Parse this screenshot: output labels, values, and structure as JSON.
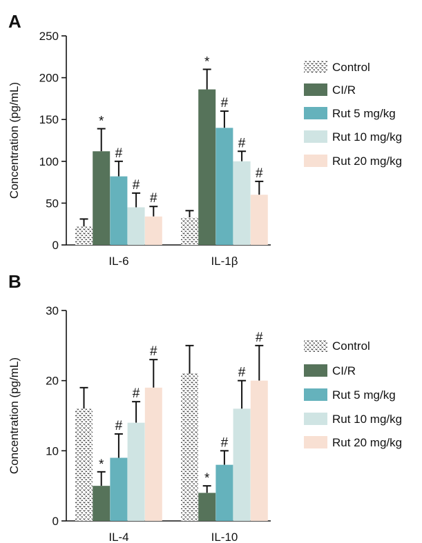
{
  "chart_data": [
    {
      "type": "bar",
      "panel_label": "A",
      "ylabel": "Concentration (pg/mL)",
      "xlabel": "",
      "ylim": [
        0,
        250
      ],
      "yticks": [
        0,
        50,
        100,
        150,
        200,
        250
      ],
      "categories": [
        "IL-6",
        "IL-1β"
      ],
      "grid": false,
      "legend_position": "right",
      "series": [
        {
          "name": "Control",
          "values": [
            22,
            33
          ],
          "errors": [
            9,
            8
          ],
          "markers": [
            "",
            ""
          ]
        },
        {
          "name": "CI/R",
          "values": [
            112,
            186
          ],
          "errors": [
            27,
            24
          ],
          "markers": [
            "*",
            "*"
          ]
        },
        {
          "name": "Rut 5 mg/kg",
          "values": [
            82,
            140
          ],
          "errors": [
            18,
            20
          ],
          "markers": [
            "#",
            "#"
          ]
        },
        {
          "name": "Rut 10 mg/kg",
          "values": [
            45,
            100
          ],
          "errors": [
            17,
            12
          ],
          "markers": [
            "#",
            "#"
          ]
        },
        {
          "name": "Rut 20 mg/kg",
          "values": [
            34,
            60
          ],
          "errors": [
            12,
            16
          ],
          "markers": [
            "#",
            "#"
          ]
        }
      ]
    },
    {
      "type": "bar",
      "panel_label": "B",
      "ylabel": "Concentration (pg/mL)",
      "xlabel": "",
      "ylim": [
        0,
        30
      ],
      "yticks": [
        0,
        10,
        20,
        30
      ],
      "categories": [
        "IL-4",
        "IL-10"
      ],
      "grid": false,
      "legend_position": "right",
      "series": [
        {
          "name": "Control",
          "values": [
            16,
            21
          ],
          "errors": [
            3,
            4
          ],
          "markers": [
            "",
            ""
          ]
        },
        {
          "name": "CI/R",
          "values": [
            5,
            4
          ],
          "errors": [
            2,
            1
          ],
          "markers": [
            "*",
            "*"
          ]
        },
        {
          "name": "Rut 5 mg/kg",
          "values": [
            9,
            8
          ],
          "errors": [
            3.4,
            2
          ],
          "markers": [
            "#",
            "#"
          ]
        },
        {
          "name": "Rut 10 mg/kg",
          "values": [
            14,
            16
          ],
          "errors": [
            3,
            4
          ],
          "markers": [
            "#",
            "#"
          ]
        },
        {
          "name": "Rut 20 mg/kg",
          "values": [
            19,
            20
          ],
          "errors": [
            4,
            5
          ],
          "markers": [
            "#",
            "#"
          ]
        }
      ]
    }
  ],
  "series_colors": {
    "Control": "#ffffff",
    "CI/R": "#56735a",
    "Rut 5 mg/kg": "#65b2bc",
    "Rut 10 mg/kg": "#cfe4e3",
    "Rut 20 mg/kg": "#f8e0d3"
  },
  "control_pattern": "dotted-chevron-hatch"
}
